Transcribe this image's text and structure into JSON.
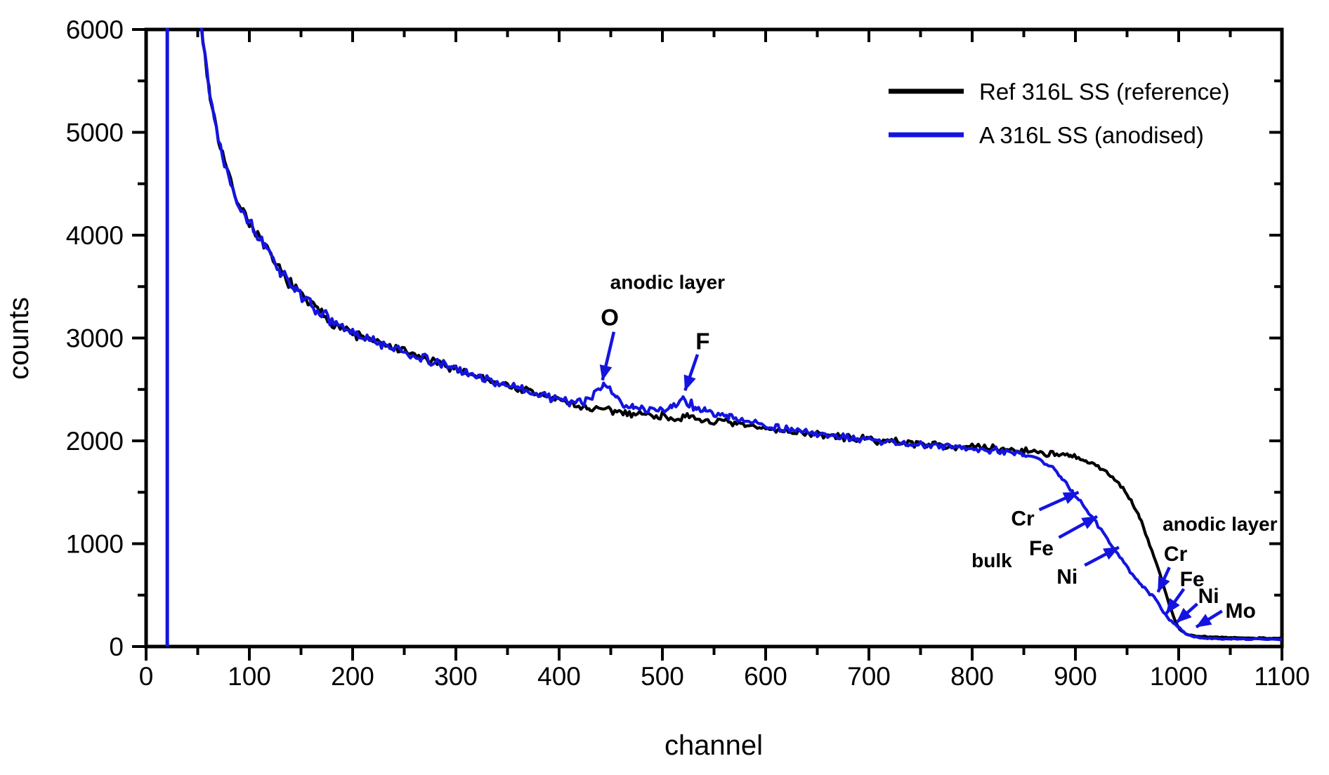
{
  "figure": {
    "background": "#ffffff",
    "frame_color": "#000000"
  },
  "axes": {
    "x": {
      "label": "channel",
      "min": 0,
      "max": 1100,
      "major_step": 100,
      "minor_step": 50,
      "tick_labels": [
        "0",
        "100",
        "200",
        "300",
        "400",
        "500",
        "600",
        "700",
        "800",
        "900",
        "1000",
        "1100"
      ]
    },
    "y": {
      "label": "counts",
      "min": 0,
      "max": 6000,
      "major_step": 1000,
      "minor_step": 500,
      "tick_labels": [
        "0",
        "1000",
        "2000",
        "3000",
        "4000",
        "5000",
        "6000"
      ]
    }
  },
  "legend": {
    "entries": [
      {
        "label": "Ref 316L  SS (reference)",
        "color": "#000000"
      },
      {
        "label": "A 316L SS (anodised)",
        "color": "#1414e0"
      }
    ]
  },
  "chart_data": {
    "type": "line",
    "title": "",
    "xlabel": "channel",
    "ylabel": "counts",
    "xlim": [
      0,
      1100
    ],
    "ylim": [
      0,
      6000
    ],
    "grid": false,
    "legend_position": "top-right",
    "series": [
      {
        "name": "Ref 316L  SS (reference)",
        "color": "#000000",
        "noise_seed": 7,
        "noise_zones": [
          [
            49,
            210,
            65
          ],
          [
            210,
            610,
            52
          ],
          [
            610,
            905,
            42
          ],
          [
            905,
            965,
            25
          ],
          [
            965,
            1005,
            12
          ],
          [
            1005,
            1100,
            7
          ]
        ],
        "anchors": [
          [
            49,
            6600
          ],
          [
            55,
            5900
          ],
          [
            62,
            5350
          ],
          [
            70,
            4950
          ],
          [
            80,
            4570
          ],
          [
            90,
            4300
          ],
          [
            100,
            4130
          ],
          [
            115,
            3880
          ],
          [
            130,
            3650
          ],
          [
            145,
            3470
          ],
          [
            160,
            3320
          ],
          [
            180,
            3160
          ],
          [
            200,
            3040
          ],
          [
            220,
            2970
          ],
          [
            240,
            2900
          ],
          [
            260,
            2830
          ],
          [
            280,
            2760
          ],
          [
            300,
            2700
          ],
          [
            320,
            2630
          ],
          [
            340,
            2570
          ],
          [
            360,
            2510
          ],
          [
            380,
            2450
          ],
          [
            400,
            2400
          ],
          [
            415,
            2350
          ],
          [
            430,
            2310
          ],
          [
            450,
            2290
          ],
          [
            470,
            2270
          ],
          [
            490,
            2250
          ],
          [
            510,
            2230
          ],
          [
            530,
            2210
          ],
          [
            550,
            2190
          ],
          [
            570,
            2160
          ],
          [
            590,
            2130
          ],
          [
            610,
            2110
          ],
          [
            640,
            2075
          ],
          [
            670,
            2040
          ],
          [
            700,
            2010
          ],
          [
            730,
            1990
          ],
          [
            760,
            1965
          ],
          [
            790,
            1945
          ],
          [
            820,
            1925
          ],
          [
            850,
            1905
          ],
          [
            870,
            1885
          ],
          [
            895,
            1845
          ],
          [
            910,
            1805
          ],
          [
            920,
            1755
          ],
          [
            930,
            1695
          ],
          [
            940,
            1615
          ],
          [
            948,
            1515
          ],
          [
            955,
            1395
          ],
          [
            962,
            1255
          ],
          [
            968,
            1095
          ],
          [
            974,
            935
          ],
          [
            980,
            765
          ],
          [
            986,
            565
          ],
          [
            991,
            405
          ],
          [
            996,
            265
          ],
          [
            1001,
            165
          ],
          [
            1008,
            118
          ],
          [
            1015,
            102
          ],
          [
            1030,
            92
          ],
          [
            1060,
            85
          ],
          [
            1100,
            80
          ]
        ]
      },
      {
        "name": "A 316L SS (anodised)",
        "color": "#1414e0",
        "noise_seed": 13,
        "spike": {
          "channel": 20.5,
          "from": 0,
          "to": 6600
        },
        "noise_zones": [
          [
            49,
            210,
            65
          ],
          [
            210,
            565,
            52
          ],
          [
            565,
            858,
            42
          ],
          [
            858,
            935,
            22
          ],
          [
            935,
            1002,
            14
          ],
          [
            1002,
            1100,
            6
          ]
        ],
        "anchors": [
          [
            49,
            6600
          ],
          [
            55,
            5900
          ],
          [
            62,
            5350
          ],
          [
            70,
            4950
          ],
          [
            80,
            4570
          ],
          [
            90,
            4300
          ],
          [
            100,
            4130
          ],
          [
            115,
            3880
          ],
          [
            130,
            3650
          ],
          [
            145,
            3470
          ],
          [
            160,
            3320
          ],
          [
            180,
            3160
          ],
          [
            200,
            3040
          ],
          [
            220,
            2970
          ],
          [
            240,
            2900
          ],
          [
            260,
            2830
          ],
          [
            280,
            2760
          ],
          [
            300,
            2700
          ],
          [
            320,
            2630
          ],
          [
            340,
            2570
          ],
          [
            360,
            2510
          ],
          [
            380,
            2455
          ],
          [
            400,
            2410
          ],
          [
            412,
            2380
          ],
          [
            424,
            2375
          ],
          [
            432,
            2420
          ],
          [
            438,
            2490
          ],
          [
            443,
            2545
          ],
          [
            449,
            2505
          ],
          [
            456,
            2420
          ],
          [
            463,
            2355
          ],
          [
            472,
            2320
          ],
          [
            482,
            2305
          ],
          [
            492,
            2295
          ],
          [
            502,
            2310
          ],
          [
            509,
            2340
          ],
          [
            515,
            2385
          ],
          [
            520,
            2405
          ],
          [
            526,
            2365
          ],
          [
            533,
            2320
          ],
          [
            542,
            2290
          ],
          [
            552,
            2260
          ],
          [
            565,
            2230
          ],
          [
            580,
            2200
          ],
          [
            600,
            2150
          ],
          [
            625,
            2105
          ],
          [
            650,
            2065
          ],
          [
            675,
            2030
          ],
          [
            700,
            2005
          ],
          [
            730,
            1980
          ],
          [
            760,
            1955
          ],
          [
            790,
            1930
          ],
          [
            815,
            1910
          ],
          [
            835,
            1890
          ],
          [
            850,
            1870
          ],
          [
            862,
            1835
          ],
          [
            872,
            1780
          ],
          [
            880,
            1715
          ],
          [
            887,
            1640
          ],
          [
            893,
            1560
          ],
          [
            898,
            1490
          ],
          [
            903,
            1430
          ],
          [
            909,
            1350
          ],
          [
            914,
            1290
          ],
          [
            918,
            1240
          ],
          [
            923,
            1165
          ],
          [
            929,
            1075
          ],
          [
            934,
            995
          ],
          [
            939,
            925
          ],
          [
            945,
            845
          ],
          [
            951,
            755
          ],
          [
            958,
            665
          ],
          [
            965,
            585
          ],
          [
            972,
            515
          ],
          [
            979,
            455
          ],
          [
            985,
            340
          ],
          [
            991,
            265
          ],
          [
            996,
            222
          ],
          [
            1001,
            175
          ],
          [
            1007,
            125
          ],
          [
            1013,
            98
          ],
          [
            1022,
            82
          ],
          [
            1045,
            75
          ],
          [
            1075,
            72
          ],
          [
            1100,
            70
          ]
        ]
      }
    ],
    "annotations": [
      {
        "id": "anodic-layer-top",
        "text": "anodic layer",
        "ch": 505,
        "counts": 3545,
        "size": 28
      },
      {
        "id": "oxygen-peak",
        "text": "O",
        "ch": 449,
        "counts": 3190,
        "size": 33,
        "arrow": {
          "from": [
            453,
            3060
          ],
          "to": [
            442,
            2590
          ]
        }
      },
      {
        "id": "fluorine-peak",
        "text": "F",
        "ch": 539,
        "counts": 2960,
        "size": 33,
        "arrow": {
          "from": [
            534,
            2840
          ],
          "to": [
            522,
            2490
          ]
        }
      },
      {
        "id": "bulk",
        "text": "bulk",
        "ch": 819,
        "counts": 840,
        "size": 28
      },
      {
        "id": "bulk-Cr",
        "text": "Cr",
        "ch": 849,
        "counts": 1245,
        "size": 30,
        "arrow": {
          "from": [
            865,
            1330
          ],
          "to": [
            903,
            1500
          ]
        }
      },
      {
        "id": "bulk-Fe",
        "text": "Fe",
        "ch": 867,
        "counts": 955,
        "size": 30,
        "arrow": {
          "from": [
            884,
            1060
          ],
          "to": [
            921,
            1265
          ]
        }
      },
      {
        "id": "bulk-Ni",
        "text": "Ni",
        "ch": 892,
        "counts": 680,
        "size": 30,
        "arrow": {
          "from": [
            909,
            790
          ],
          "to": [
            942,
            965
          ]
        }
      },
      {
        "id": "anodic-layer-right",
        "text": "anodic layer",
        "ch": 1040,
        "counts": 1195,
        "size": 28
      },
      {
        "id": "anodic-Cr",
        "text": "Cr",
        "ch": 997,
        "counts": 900,
        "size": 30,
        "arrow": {
          "from": [
            991,
            770
          ],
          "to": [
            980,
            530
          ]
        }
      },
      {
        "id": "anodic-Fe",
        "text": "Fe",
        "ch": 1013,
        "counts": 655,
        "size": 30,
        "arrow": {
          "from": [
            1005,
            560
          ],
          "to": [
            988,
            320
          ]
        }
      },
      {
        "id": "anodic-Ni",
        "text": "Ni",
        "ch": 1029,
        "counts": 490,
        "size": 30,
        "arrow": {
          "from": [
            1018,
            415
          ],
          "to": [
            998,
            235
          ]
        }
      },
      {
        "id": "molybdenum",
        "text": "Mo",
        "ch": 1060,
        "counts": 348,
        "size": 30,
        "arrow": {
          "from": [
            1042,
            345
          ],
          "to": [
            1017,
            190
          ]
        }
      }
    ],
    "annotation_color": "#1414e0"
  }
}
